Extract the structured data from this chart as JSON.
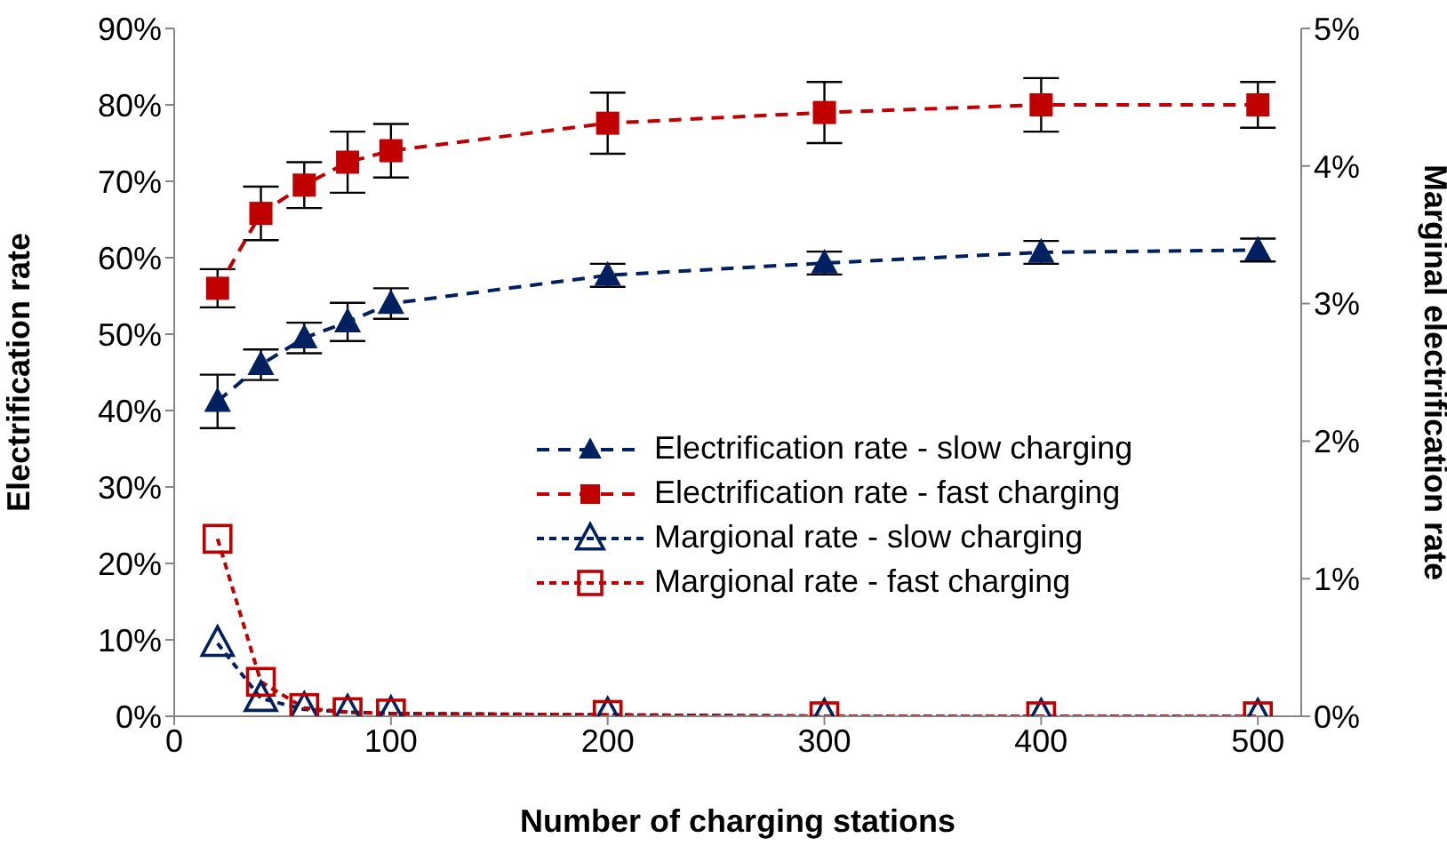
{
  "chart_data": {
    "type": "line",
    "xlabel": "Number of charging stations",
    "ylabel": "Electrification rate",
    "y2label": "Marginal electrification rate",
    "x": [
      20,
      40,
      60,
      80,
      100,
      200,
      300,
      400,
      500
    ],
    "xlim": [
      0,
      520
    ],
    "xticks": [
      0,
      100,
      200,
      300,
      400,
      500
    ],
    "ylim": [
      0,
      0.9
    ],
    "yticks": [
      {
        "value": 0,
        "label": "0%"
      },
      {
        "value": 0.1,
        "label": "10%"
      },
      {
        "value": 0.2,
        "label": "20%"
      },
      {
        "value": 0.3,
        "label": "30%"
      },
      {
        "value": 0.4,
        "label": "40%"
      },
      {
        "value": 0.5,
        "label": "50%"
      },
      {
        "value": 0.6,
        "label": "60%"
      },
      {
        "value": 0.7,
        "label": "70%"
      },
      {
        "value": 0.8,
        "label": "80%"
      },
      {
        "value": 0.9,
        "label": "90%"
      }
    ],
    "y2lim": [
      0,
      0.05
    ],
    "y2ticks": [
      {
        "value": 0,
        "label": "0%"
      },
      {
        "value": 0.01,
        "label": "1%"
      },
      {
        "value": 0.02,
        "label": "2%"
      },
      {
        "value": 0.03,
        "label": "3%"
      },
      {
        "value": 0.04,
        "label": "4%"
      },
      {
        "value": 0.05,
        "label": "5%"
      }
    ],
    "series": [
      {
        "name": "Electrification rate - slow charging",
        "color": "#002060",
        "marker": "triangle",
        "line_style": "dashed",
        "values": [
          0.412,
          0.46,
          0.495,
          0.516,
          0.54,
          0.577,
          0.593,
          0.607,
          0.61
        ],
        "errors": [
          0.035,
          0.02,
          0.02,
          0.025,
          0.02,
          0.015,
          0.015,
          0.015,
          0.015
        ]
      },
      {
        "name": "Electrification rate - fast charging",
        "color": "#c00000",
        "marker": "square",
        "line_style": "dashed",
        "values": [
          0.56,
          0.658,
          0.695,
          0.725,
          0.74,
          0.776,
          0.79,
          0.8,
          0.8
        ],
        "errors": [
          0.025,
          0.035,
          0.03,
          0.04,
          0.035,
          0.04,
          0.04,
          0.035,
          0.03
        ]
      },
      {
        "name": "Margional rate - slow charging",
        "color": "#002060",
        "marker": "triangle",
        "line_style": "dashed",
        "axis": "y2",
        "values": [
          0.0053,
          0.0013,
          0.0005,
          0.0003,
          0.0002,
          0.0001,
          0.0,
          0.0,
          0.0
        ]
      },
      {
        "name": "Margional rate - fast charging",
        "color": "#c00000",
        "marker": "square",
        "line_style": "dashed",
        "axis": "y2",
        "values": [
          0.0129,
          0.0025,
          0.0006,
          0.0003,
          0.0002,
          0.0001,
          0.0,
          0.0,
          0.0
        ]
      }
    ],
    "legend": "right",
    "grid": false
  }
}
